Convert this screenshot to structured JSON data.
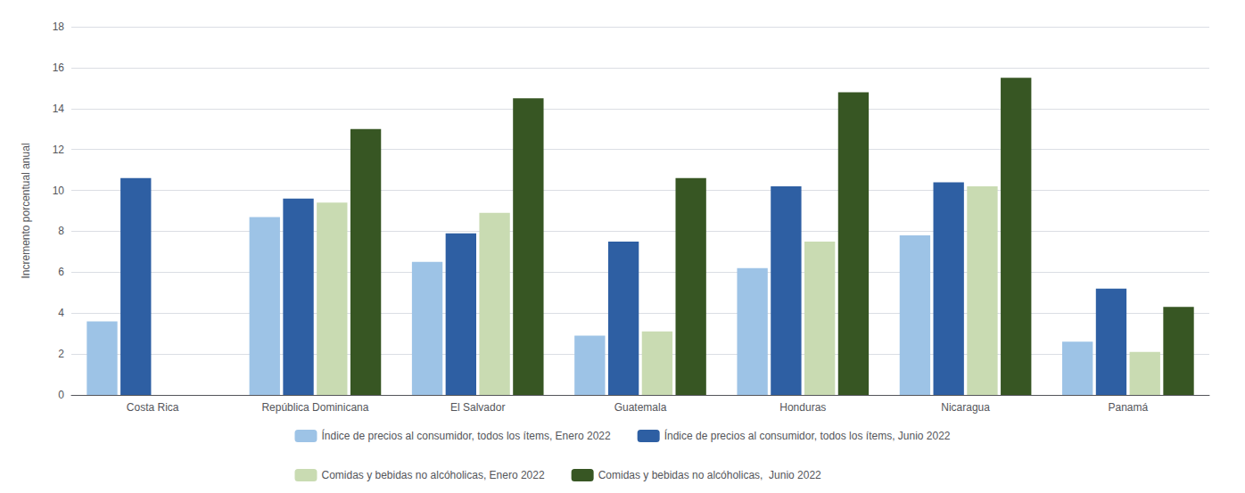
{
  "chart_data": {
    "type": "bar",
    "categories": [
      "Costa Rica",
      "República Dominicana",
      "El Salvador",
      "Guatemala",
      "Honduras",
      "Nicaragua",
      "Panamá"
    ],
    "series": [
      {
        "name": "Índice de precios al consumidor, todos los ítems, Enero 2022",
        "color": "#9dc3e6",
        "values": [
          3.6,
          8.7,
          6.5,
          2.9,
          6.2,
          7.8,
          2.6
        ]
      },
      {
        "name": "Índice de precios al consumidor, todos los ítems, Junio 2022",
        "color": "#2e5fa3",
        "values": [
          10.6,
          9.6,
          7.9,
          7.5,
          10.2,
          10.4,
          5.2
        ]
      },
      {
        "name": "Comidas y bebidas no alcóholicas, Enero 2022",
        "color": "#c9dbb2",
        "values": [
          null,
          9.4,
          8.9,
          3.1,
          7.5,
          10.2,
          2.1
        ]
      },
      {
        "name": "Comidas y bebidas no alcóholicas,  Junio 2022",
        "color": "#375623",
        "values": [
          null,
          13.0,
          14.5,
          10.6,
          14.8,
          15.5,
          4.3
        ]
      }
    ],
    "ylabel": "Incremento porcentual anual",
    "ylim": [
      0,
      18
    ],
    "yticks": [
      0,
      2,
      4,
      6,
      8,
      10,
      12,
      14,
      16,
      18
    ],
    "grid": true,
    "legend": "bottom"
  }
}
